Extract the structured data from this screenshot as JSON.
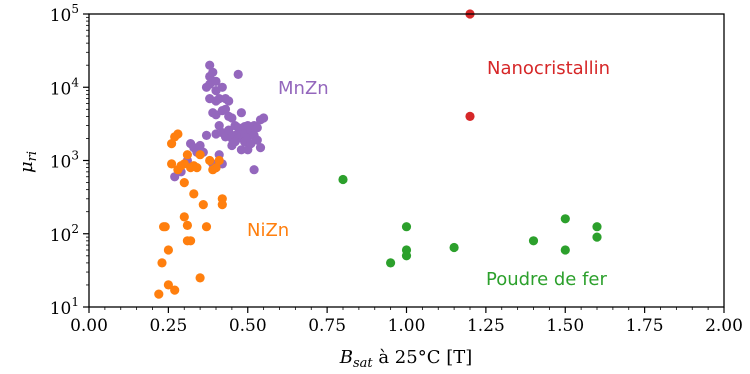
{
  "chart_data": {
    "type": "scatter",
    "title": "",
    "xlabel_main": "B",
    "xlabel_sub": "sat",
    "xlabel_rest": " à 25°C [T]",
    "ylabel_main": "μ",
    "ylabel_sub": "ri",
    "xlim": [
      0,
      2.0
    ],
    "xticks": [
      "0.00",
      "0.25",
      "0.50",
      "0.75",
      "1.00",
      "1.25",
      "1.50",
      "1.75",
      "2.00"
    ],
    "xtick_values": [
      0,
      0.25,
      0.5,
      0.75,
      1.0,
      1.25,
      1.5,
      1.75,
      2.0
    ],
    "ylim": [
      10,
      100000
    ],
    "yscale": "log",
    "ytick_values": [
      10,
      100,
      1000,
      10000,
      100000
    ],
    "ytick_base": "10",
    "ytick_exponents": [
      "1",
      "2",
      "3",
      "4",
      "5"
    ],
    "grid": false,
    "series": [
      {
        "name": "MnZn",
        "color": "#9467bd",
        "points": [
          [
            0.27,
            600
          ],
          [
            0.29,
            700
          ],
          [
            0.31,
            1000
          ],
          [
            0.32,
            1700
          ],
          [
            0.33,
            1500
          ],
          [
            0.34,
            1300
          ],
          [
            0.35,
            1600
          ],
          [
            0.36,
            1300
          ],
          [
            0.37,
            2200
          ],
          [
            0.37,
            10000
          ],
          [
            0.38,
            11000
          ],
          [
            0.38,
            14000
          ],
          [
            0.38,
            20000
          ],
          [
            0.38,
            7000
          ],
          [
            0.39,
            16000
          ],
          [
            0.39,
            12000
          ],
          [
            0.39,
            4500
          ],
          [
            0.39,
            900
          ],
          [
            0.4,
            12000
          ],
          [
            0.4,
            9000
          ],
          [
            0.4,
            6500
          ],
          [
            0.4,
            4200
          ],
          [
            0.4,
            2300
          ],
          [
            0.4,
            800
          ],
          [
            0.41,
            7000
          ],
          [
            0.41,
            3000
          ],
          [
            0.41,
            1200
          ],
          [
            0.42,
            10000
          ],
          [
            0.42,
            4800
          ],
          [
            0.42,
            2400
          ],
          [
            0.42,
            900
          ],
          [
            0.43,
            5000
          ],
          [
            0.43,
            7000
          ],
          [
            0.43,
            2100
          ],
          [
            0.44,
            6500
          ],
          [
            0.44,
            4000
          ],
          [
            0.44,
            2600
          ],
          [
            0.45,
            3800
          ],
          [
            0.45,
            2000
          ],
          [
            0.45,
            1600
          ],
          [
            0.46,
            3000
          ],
          [
            0.46,
            2200
          ],
          [
            0.47,
            15000
          ],
          [
            0.47,
            2800
          ],
          [
            0.47,
            2000
          ],
          [
            0.48,
            2500
          ],
          [
            0.48,
            1400
          ],
          [
            0.48,
            4500
          ],
          [
            0.49,
            2900
          ],
          [
            0.49,
            2300
          ],
          [
            0.49,
            1800
          ],
          [
            0.5,
            3000
          ],
          [
            0.5,
            2100
          ],
          [
            0.5,
            1400
          ],
          [
            0.51,
            2600
          ],
          [
            0.51,
            1700
          ],
          [
            0.52,
            3000
          ],
          [
            0.52,
            2200
          ],
          [
            0.52,
            750
          ],
          [
            0.53,
            2800
          ],
          [
            0.53,
            1900
          ],
          [
            0.54,
            3600
          ],
          [
            0.54,
            1500
          ],
          [
            0.55,
            3800
          ],
          [
            0.46,
            1800
          ]
        ]
      },
      {
        "name": "NiZn",
        "color": "#ff7f0e",
        "points": [
          [
            0.22,
            15
          ],
          [
            0.23,
            40
          ],
          [
            0.235,
            125
          ],
          [
            0.24,
            125
          ],
          [
            0.25,
            20
          ],
          [
            0.25,
            60
          ],
          [
            0.26,
            900
          ],
          [
            0.26,
            1700
          ],
          [
            0.27,
            17
          ],
          [
            0.27,
            2100
          ],
          [
            0.28,
            2300
          ],
          [
            0.28,
            750
          ],
          [
            0.29,
            850
          ],
          [
            0.3,
            500
          ],
          [
            0.3,
            900
          ],
          [
            0.31,
            1200
          ],
          [
            0.31,
            80
          ],
          [
            0.31,
            130
          ],
          [
            0.32,
            80
          ],
          [
            0.32,
            800
          ],
          [
            0.33,
            350
          ],
          [
            0.33,
            850
          ],
          [
            0.34,
            800
          ],
          [
            0.35,
            25
          ],
          [
            0.35,
            1200
          ],
          [
            0.36,
            250
          ],
          [
            0.37,
            125
          ],
          [
            0.38,
            1000
          ],
          [
            0.39,
            750
          ],
          [
            0.4,
            800
          ],
          [
            0.41,
            1000
          ],
          [
            0.42,
            300
          ],
          [
            0.42,
            250
          ],
          [
            0.3,
            170
          ]
        ]
      },
      {
        "name": "Poudre de fer",
        "color": "#2ca02c",
        "points": [
          [
            0.8,
            550
          ],
          [
            0.95,
            40
          ],
          [
            1.0,
            125
          ],
          [
            1.0,
            60
          ],
          [
            1.0,
            50
          ],
          [
            1.15,
            65
          ],
          [
            1.4,
            80
          ],
          [
            1.5,
            160
          ],
          [
            1.5,
            60
          ],
          [
            1.6,
            125
          ],
          [
            1.6,
            90
          ]
        ]
      },
      {
        "name": "Nanocristallin",
        "color": "#d62728",
        "points": [
          [
            1.2,
            100000
          ],
          [
            1.2,
            4000
          ]
        ]
      }
    ]
  }
}
